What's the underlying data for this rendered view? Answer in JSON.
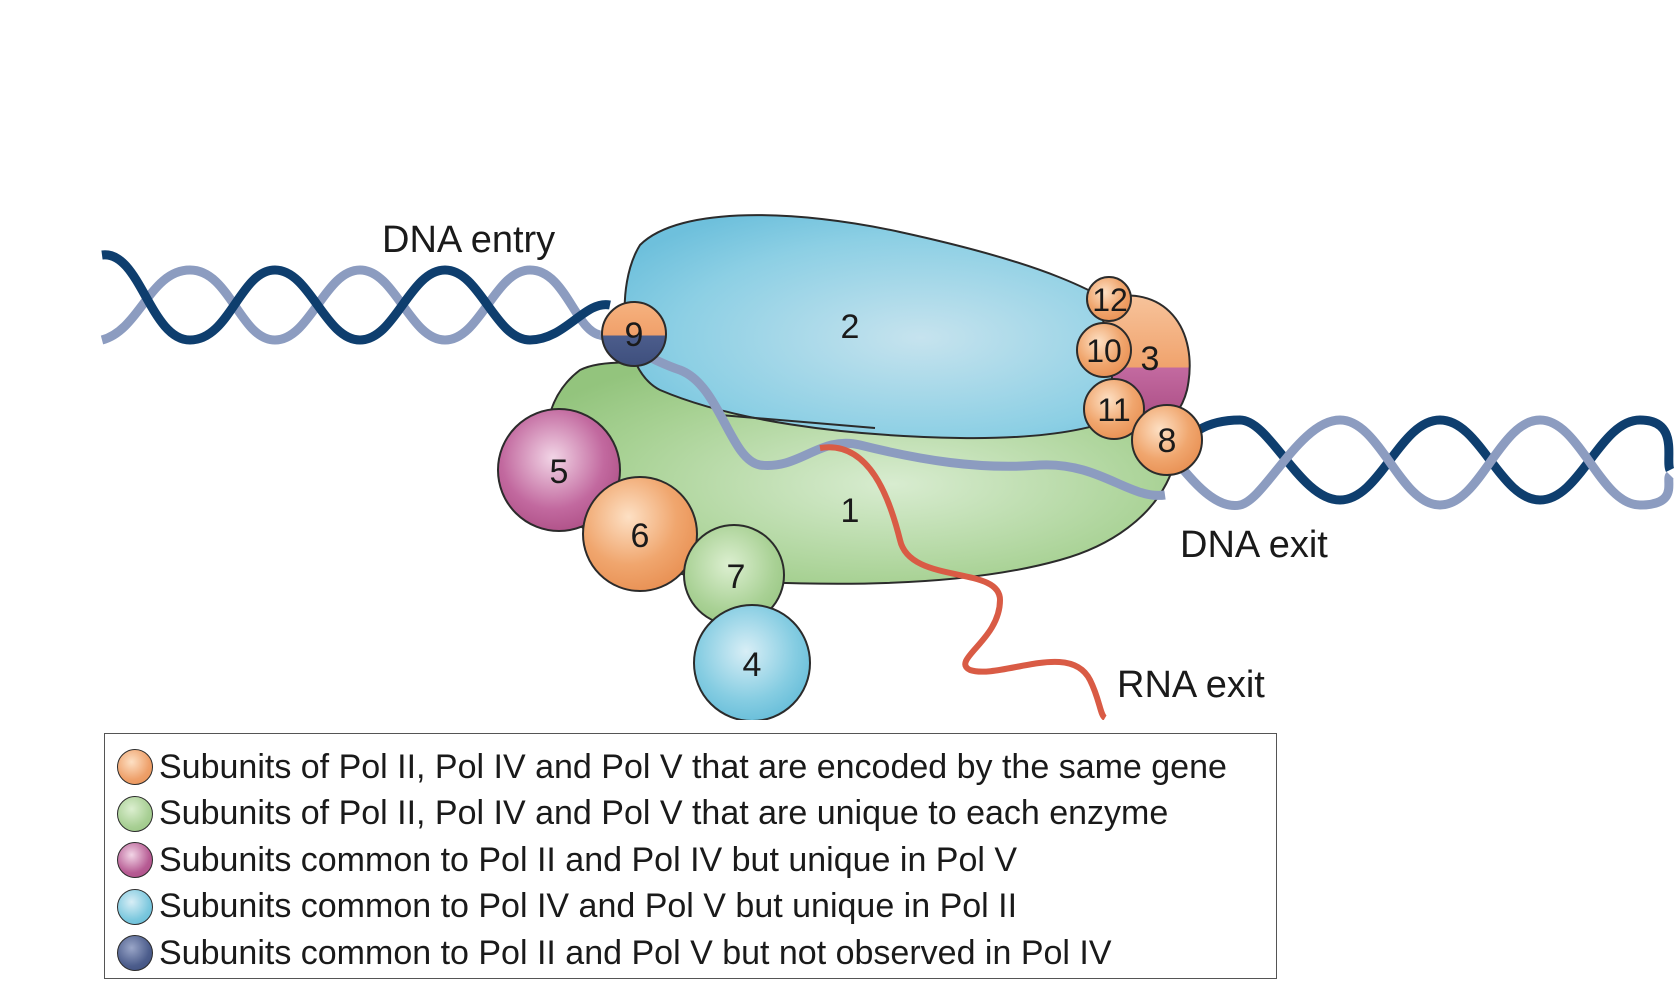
{
  "labels": {
    "dna_entry": "DNA entry",
    "dna_exit": "DNA exit",
    "rna_exit": "RNA exit"
  },
  "subunits": {
    "s1": "1",
    "s2": "2",
    "s3": "3",
    "s4": "4",
    "s5": "5",
    "s6": "6",
    "s7": "7",
    "s8": "8",
    "s9": "9",
    "s10": "10",
    "s11": "11",
    "s12": "12"
  },
  "colors": {
    "orange": "#eea06a",
    "green": "#a8cf94",
    "magenta": "#b75c94",
    "blue": "#7cc8de",
    "navy": "#4c5d8c",
    "dna_dark": "#0e3e6e",
    "dna_light": "#8c9cc0",
    "rna": "#d95b45"
  },
  "legend": [
    {
      "color": "orange",
      "text": "Subunits of Pol II, Pol IV and Pol V that are encoded by the same gene"
    },
    {
      "color": "green",
      "text": "Subunits of Pol II, Pol IV and Pol V that are unique to each enzyme"
    },
    {
      "color": "magenta",
      "text": "Subunits common to Pol II and Pol IV but unique in Pol V"
    },
    {
      "color": "blue",
      "text": "Subunits common to Pol IV and Pol V but unique in Pol II"
    },
    {
      "color": "navy",
      "text": "Subunits common to Pol II and Pol V but not observed in Pol IV"
    }
  ]
}
